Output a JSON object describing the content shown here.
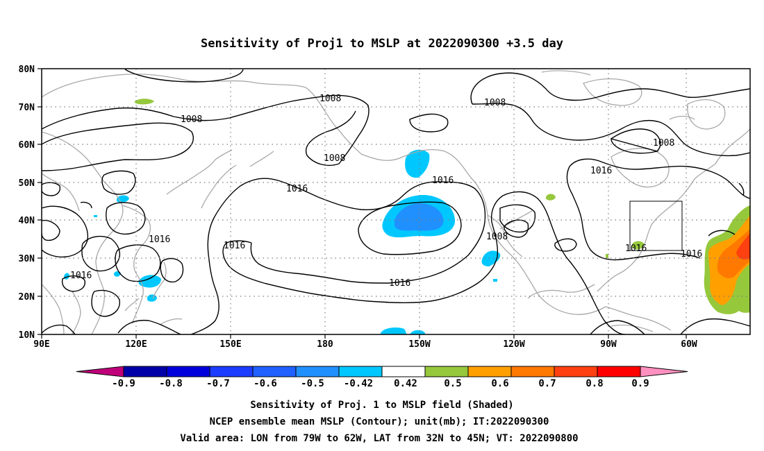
{
  "title": "Sensitivity of Proj1 to MSLP at 2022090300 +3.5 day",
  "lat_labels": [
    "80N",
    "70N",
    "60N",
    "50N",
    "40N",
    "30N",
    "20N",
    "10N"
  ],
  "lon_labels": [
    "90E",
    "120E",
    "150E",
    "180",
    "150W",
    "120W",
    "90W",
    "60W"
  ],
  "contour_labels": [
    "1008",
    "1008",
    "1008",
    "1008",
    "1008",
    "1008",
    "1016",
    "1016",
    "1016",
    "1016",
    "1016",
    "1016",
    "1016",
    "1016",
    "1016"
  ],
  "colorbar": {
    "labels": [
      "-0.9",
      "-0.8",
      "-0.7",
      "-0.6",
      "-0.5",
      "-0.42",
      "0.42",
      "0.5",
      "0.6",
      "0.7",
      "0.8",
      "0.9"
    ],
    "colors": [
      "#c0007a",
      "#0000a8",
      "#0000dc",
      "#1c3cff",
      "#2060ff",
      "#2090ff",
      "#00c8ff",
      "#ffffff",
      "#96c83c",
      "#ffa000",
      "#ff7800",
      "#ff4010",
      "#ff0000",
      "#ff90c0"
    ]
  },
  "shading_colors": {
    "neg_0_42": "#00c8ff",
    "neg_0_5": "#2090ff",
    "pos_0_42": "#96c83c",
    "pos_0_5": "#ffa000",
    "pos_0_6": "#ff7800",
    "pos_0_7": "#ff4010"
  },
  "captions": {
    "line1": "Sensitivity of Proj. 1 to MSLP field (Shaded)",
    "line2": "NCEP ensemble mean MSLP (Contour); unit(mb); IT:2022090300",
    "line3": "Valid area: LON from 79W to 62W, LAT from 32N to 45N; VT: 2022090800"
  },
  "valid_area": {
    "lon_west": -79,
    "lon_east": -62,
    "lat_south": 32,
    "lat_north": 45
  }
}
